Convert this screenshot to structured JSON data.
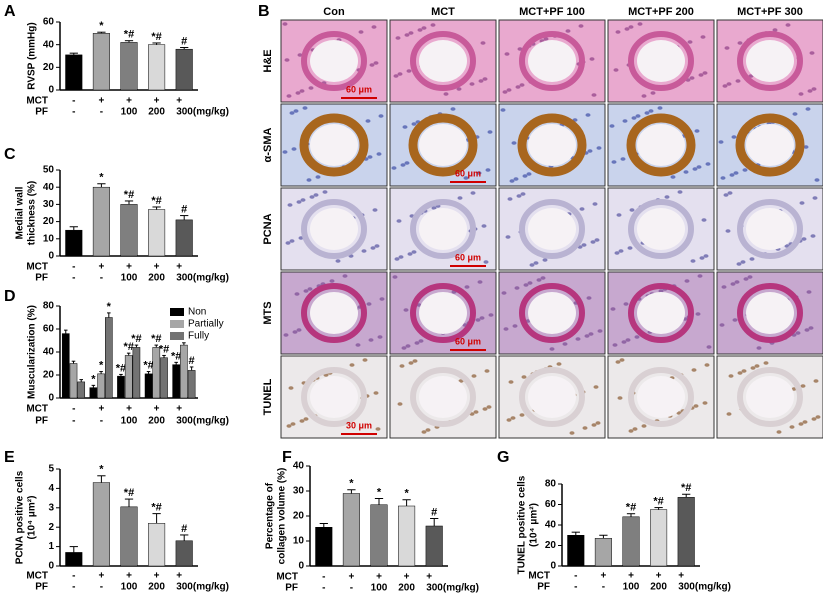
{
  "chart_data": [
    {
      "type": "bar",
      "panel": "A",
      "ylabel": [
        "RVSP (mmHg)"
      ],
      "categories": [
        "Con",
        "MCT",
        "MCT+PF 100",
        "MCT+PF 200",
        "MCT+PF 300"
      ],
      "values": [
        31,
        50,
        42,
        40,
        36
      ],
      "errors": [
        1.5,
        1,
        1.5,
        1.5,
        1.5
      ],
      "labels": [
        null,
        "*",
        "*#",
        "*#",
        "#"
      ],
      "colors": [
        "#000000",
        "#a6a6a6",
        "#7f7f7f",
        "#d9d9d9",
        "#595959"
      ],
      "ylim": [
        0,
        60
      ],
      "yticks": [
        0,
        20,
        40,
        60
      ],
      "treatments": [
        {
          "name": "MCT",
          "values": [
            "-",
            "+",
            "+",
            "+",
            "+"
          ]
        },
        {
          "name": "PF",
          "values": [
            "-",
            "-",
            "100",
            "200",
            "300(mg/kg)"
          ]
        }
      ]
    },
    {
      "type": "bar",
      "panel": "C",
      "ylabel": [
        "Medial wall",
        "thickness (%)"
      ],
      "categories": [
        "Con",
        "MCT",
        "MCT+PF 100",
        "MCT+PF 200",
        "MCT+PF 300"
      ],
      "values": [
        15,
        40,
        30,
        27,
        21
      ],
      "errors": [
        2,
        2,
        2,
        1.5,
        2.5
      ],
      "labels": [
        null,
        "*",
        "*#",
        "*#",
        "#"
      ],
      "colors": [
        "#000000",
        "#a6a6a6",
        "#7f7f7f",
        "#d9d9d9",
        "#595959"
      ],
      "ylim": [
        0,
        50
      ],
      "yticks": [
        0,
        10,
        20,
        30,
        40,
        50
      ],
      "treatments": [
        {
          "name": "MCT",
          "values": [
            "-",
            "+",
            "+",
            "+",
            "+"
          ]
        },
        {
          "name": "PF",
          "values": [
            "-",
            "-",
            "100",
            "200",
            "300(mg/kg)"
          ]
        }
      ]
    },
    {
      "type": "grouped_bar",
      "panel": "D",
      "ylabel": [
        "Muscularization (%)"
      ],
      "categories": [
        "Con",
        "MCT",
        "MCT+PF 100",
        "MCT+PF 200",
        "MCT+PF 300"
      ],
      "series": [
        {
          "name": "Non",
          "color": "#000000",
          "values": [
            56,
            9,
            19,
            21,
            29
          ],
          "errors": [
            3,
            2,
            1.5,
            2,
            2
          ],
          "labels": [
            null,
            "*",
            "*#",
            "*#",
            "*#"
          ]
        },
        {
          "name": "Partially",
          "color": "#a6a6a6",
          "values": [
            30,
            21,
            37,
            44,
            46
          ],
          "errors": [
            2,
            2,
            2,
            2,
            2
          ],
          "labels": [
            null,
            "*",
            "*#",
            "*#",
            null
          ]
        },
        {
          "name": "Fully",
          "color": "#737373",
          "values": [
            14,
            70,
            44,
            35,
            24
          ],
          "errors": [
            2,
            4,
            2,
            2,
            3
          ],
          "labels": [
            null,
            "*",
            "*#",
            "*#",
            "#"
          ]
        }
      ],
      "ylim": [
        0,
        80
      ],
      "yticks": [
        0,
        20,
        40,
        60,
        80
      ],
      "legend": "top-right",
      "treatments": [
        {
          "name": "MCT",
          "values": [
            "-",
            "+",
            "+",
            "+",
            "+"
          ]
        },
        {
          "name": "PF",
          "values": [
            "-",
            "-",
            "100",
            "200",
            "300(mg/kg)"
          ]
        }
      ]
    },
    {
      "type": "bar",
      "panel": "E",
      "ylabel": [
        "PCNA positive cells",
        "(10⁴ μm²)"
      ],
      "categories": [
        "Con",
        "MCT",
        "MCT+PF 100",
        "MCT+PF 200",
        "MCT+PF 300"
      ],
      "values": [
        0.7,
        4.3,
        3.05,
        2.2,
        1.3
      ],
      "errors": [
        0.3,
        0.35,
        0.4,
        0.5,
        0.3
      ],
      "labels": [
        null,
        "*",
        "*#",
        "*#",
        "#"
      ],
      "colors": [
        "#000000",
        "#a6a6a6",
        "#7f7f7f",
        "#d9d9d9",
        "#595959"
      ],
      "ylim": [
        0,
        5
      ],
      "yticks": [
        0,
        1,
        2,
        3,
        4,
        5
      ],
      "treatments": [
        {
          "name": "MCT",
          "values": [
            "-",
            "+",
            "+",
            "+",
            "+"
          ]
        },
        {
          "name": "PF",
          "values": [
            "-",
            "-",
            "100",
            "200",
            "300(mg/kg)"
          ]
        }
      ]
    },
    {
      "type": "bar",
      "panel": "F",
      "ylabel": [
        "Percentage of",
        "collagen volume (%)"
      ],
      "categories": [
        "Con",
        "MCT",
        "MCT+PF 100",
        "MCT+PF 200",
        "MCT+PF 300"
      ],
      "values": [
        15.5,
        29,
        24.5,
        24,
        16
      ],
      "errors": [
        1.5,
        1.5,
        2.5,
        2.5,
        3
      ],
      "labels": [
        null,
        "*",
        "*",
        "*",
        "#"
      ],
      "colors": [
        "#000000",
        "#a6a6a6",
        "#7f7f7f",
        "#d9d9d9",
        "#595959"
      ],
      "ylim": [
        0,
        40
      ],
      "yticks": [
        0,
        10,
        20,
        30,
        40
      ],
      "treatments": [
        {
          "name": "MCT",
          "values": [
            "-",
            "+",
            "+",
            "+",
            "+"
          ]
        },
        {
          "name": "PF",
          "values": [
            "-",
            "-",
            "100",
            "200",
            "300(mg/kg)"
          ]
        }
      ]
    },
    {
      "type": "bar",
      "panel": "G",
      "ylabel": [
        "TUNEL positive cells",
        "(10⁴ μm²)"
      ],
      "categories": [
        "Con",
        "MCT",
        "MCT+PF 100",
        "MCT+PF 200",
        "MCT+PF 300"
      ],
      "values": [
        30,
        27,
        48,
        55,
        67
      ],
      "errors": [
        3,
        3,
        3,
        2,
        3
      ],
      "labels": [
        null,
        null,
        "*#",
        "*#",
        "*#"
      ],
      "colors": [
        "#000000",
        "#a6a6a6",
        "#7f7f7f",
        "#d9d9d9",
        "#595959"
      ],
      "ylim": [
        0,
        80
      ],
      "yticks": [
        0,
        20,
        40,
        60,
        80
      ],
      "treatments": [
        {
          "name": "MCT",
          "values": [
            "-",
            "+",
            "+",
            "+",
            "+"
          ]
        },
        {
          "name": "PF",
          "values": [
            "-",
            "-",
            "100",
            "200",
            "300(mg/kg)"
          ]
        }
      ]
    }
  ],
  "image_panel": {
    "panel": "B",
    "columns": [
      "Con",
      "MCT",
      "MCT+PF 100",
      "MCT+PF 200",
      "MCT+PF 300"
    ],
    "rows": [
      {
        "name": "H&E",
        "scale_bar": "60 μm"
      },
      {
        "name": "α-SMA",
        "scale_bar": "60 μm"
      },
      {
        "name": "PCNA",
        "scale_bar": "60 μm"
      },
      {
        "name": "MTS",
        "scale_bar": "60 μm"
      },
      {
        "name": "TUNEL",
        "scale_bar": "30 μm"
      }
    ]
  }
}
